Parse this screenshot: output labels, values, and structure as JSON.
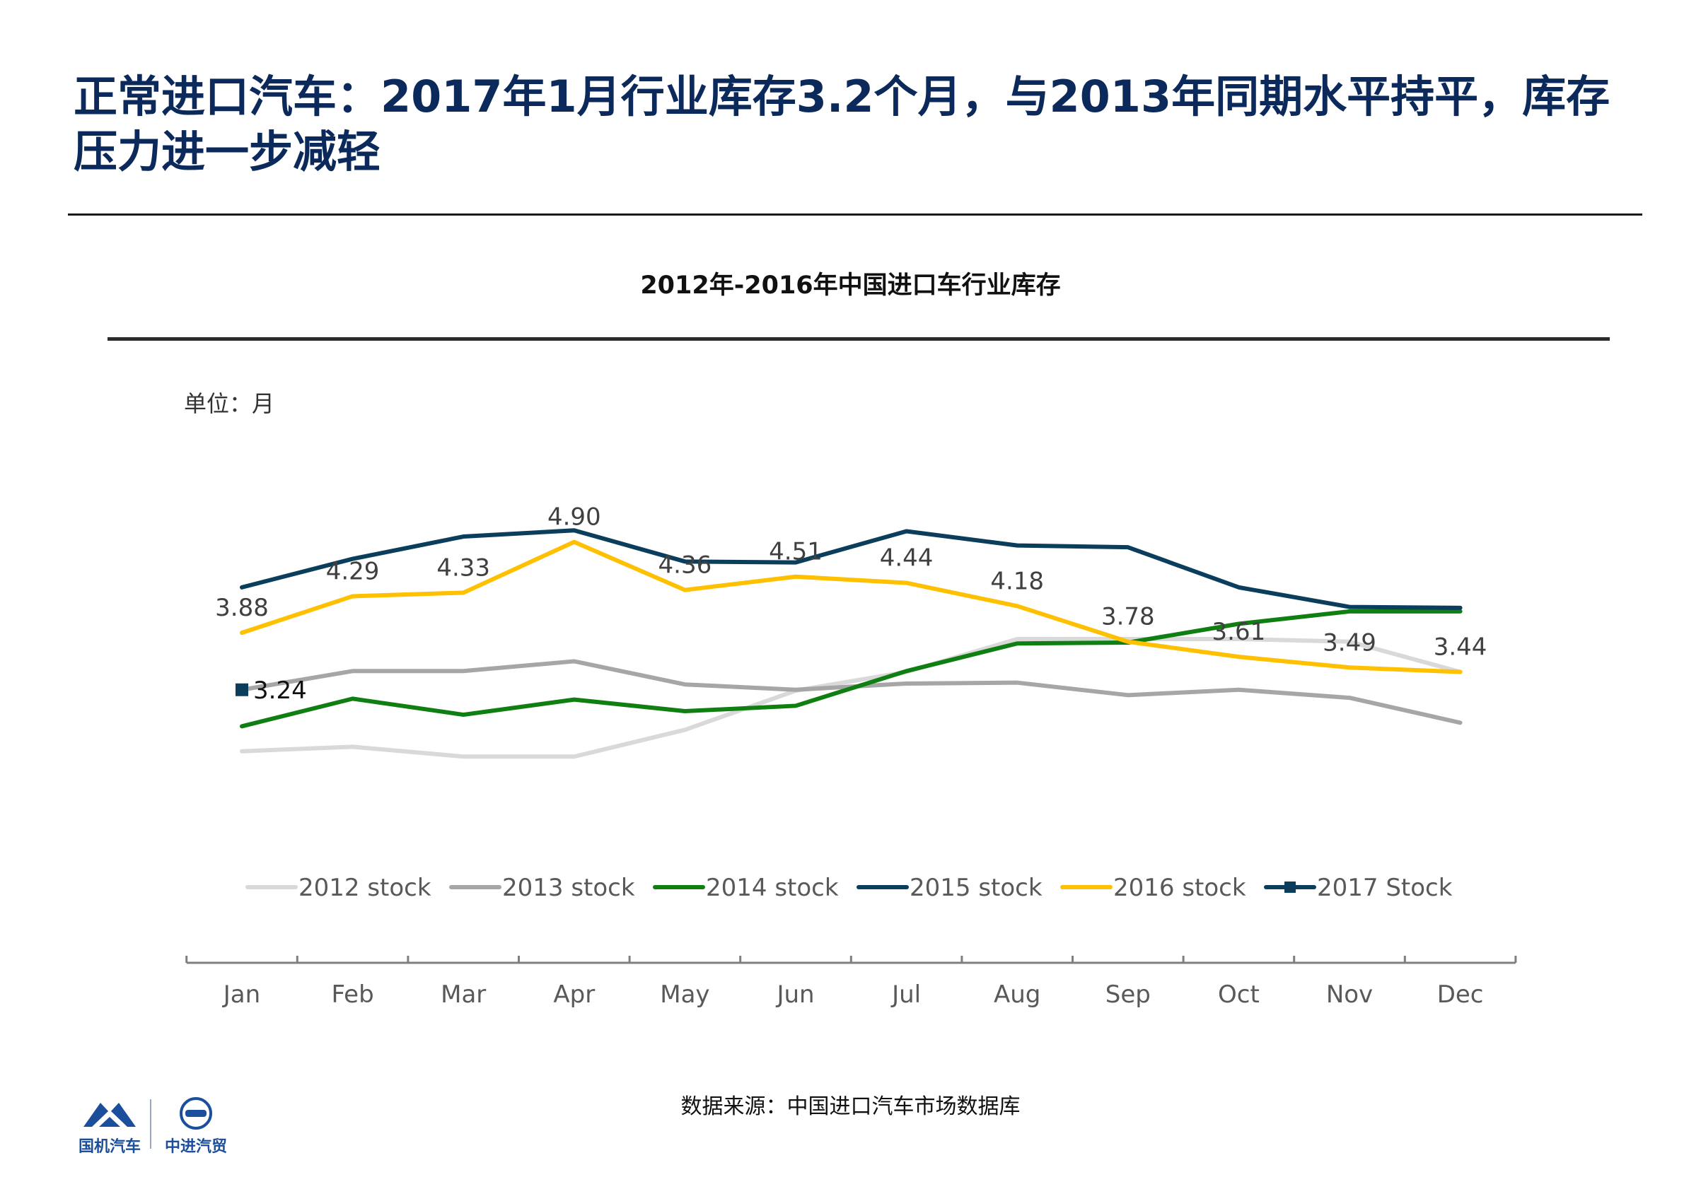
{
  "page": {
    "headline": "正常进口汽车：2017年1月行业库存3.2个月，与2013年同期水平持平，库存压力进一步减轻",
    "source": "数据来源：中国进口汽车市场数据库",
    "logos": [
      {
        "name": "国机汽车",
        "icon": "mountain-logo-icon",
        "color": "#1b4f9c"
      },
      {
        "name": "中进汽贸",
        "icon": "circle-emblem-icon",
        "color": "#1b4f9c"
      }
    ]
  },
  "chart_data": {
    "type": "line",
    "title": "2012年-2016年中国进口车行业库存",
    "unit_label": "单位：月",
    "categories": [
      "Jan",
      "Feb",
      "Mar",
      "Apr",
      "May",
      "Jun",
      "Jul",
      "Aug",
      "Sep",
      "Oct",
      "Nov",
      "Dec"
    ],
    "ylim": [
      1.5,
      6.5
    ],
    "grid": false,
    "legend_position": "bottom",
    "series": [
      {
        "name": "2012 stock",
        "color": "#d9d9d9",
        "labels": false,
        "values": [
          2.55,
          2.6,
          2.49,
          2.49,
          2.79,
          3.23,
          3.44,
          3.81,
          3.81,
          3.81,
          3.78,
          3.44
        ]
      },
      {
        "name": "2013 stock",
        "color": "#a6a6a6",
        "labels": false,
        "values": [
          3.24,
          3.45,
          3.45,
          3.56,
          3.3,
          3.24,
          3.31,
          3.32,
          3.18,
          3.24,
          3.15,
          2.87
        ]
      },
      {
        "name": "2014 stock",
        "color": "#0f7f12",
        "labels": false,
        "values": [
          2.83,
          3.14,
          2.96,
          3.13,
          3.0,
          3.06,
          3.45,
          3.76,
          3.77,
          3.98,
          4.12,
          4.12
        ]
      },
      {
        "name": "2015 stock",
        "color": "#0b3d5c",
        "labels": false,
        "values": [
          4.39,
          4.71,
          4.96,
          5.03,
          4.68,
          4.67,
          5.02,
          4.86,
          4.84,
          4.39,
          4.17,
          4.16
        ]
      },
      {
        "name": "2016 stock",
        "color": "#ffc000",
        "labels": true,
        "values": [
          3.88,
          4.29,
          4.33,
          4.9,
          4.36,
          4.51,
          4.44,
          4.18,
          3.78,
          3.61,
          3.49,
          3.44
        ],
        "data_labels": [
          "3.88",
          "4.29",
          "4.33",
          "4.90",
          "4.36",
          "4.51",
          "4.44",
          "4.18",
          "3.78",
          "3.61",
          "3.49",
          "3.44"
        ]
      },
      {
        "name": "2017 Stock",
        "color": "#0b3d5c",
        "labels": true,
        "marker": "square",
        "values": [
          3.24,
          null,
          null,
          null,
          null,
          null,
          null,
          null,
          null,
          null,
          null,
          null
        ],
        "data_labels": [
          "3.24"
        ]
      }
    ]
  }
}
